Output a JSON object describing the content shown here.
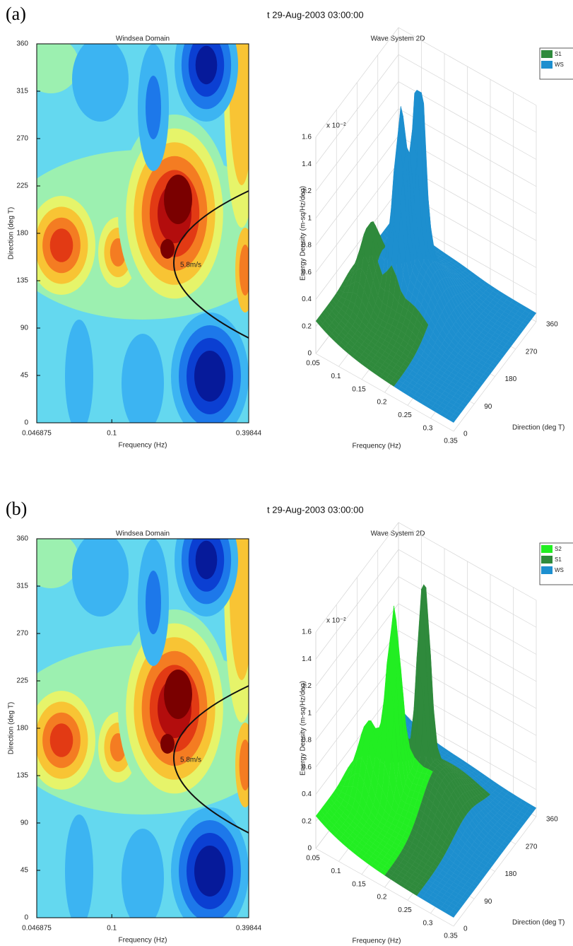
{
  "panels": [
    {
      "label": "(a)",
      "title": "t 29-Aug-2003 03:00:00",
      "charts": [
        {
          "type": "contour",
          "title": "Windsea Domain",
          "x_label": "Frequency (Hz)",
          "y_label": "Direction (deg T)",
          "xlim": [
            0.046875,
            0.39844
          ],
          "xticks": [
            0.046875,
            0.1,
            0.39844
          ],
          "xlog": true,
          "ylim": [
            0,
            360
          ],
          "yticks": [
            0,
            45,
            90,
            135,
            180,
            225,
            270,
            315,
            360
          ],
          "annotation": "5.8m/s"
        },
        {
          "type": "surface3d",
          "title": "Wave System 2D",
          "x_label": "Frequency (Hz)",
          "y_label": "Direction (deg T)",
          "z_label": "Energy Density (m-sq/Hz/deg)",
          "z_multiplier": "x 10⁻²",
          "xlim": [
            0.05,
            0.35
          ],
          "xticks": [
            0.05,
            0.1,
            0.15,
            0.2,
            0.25,
            0.3,
            0.35
          ],
          "ylim": [
            0,
            360
          ],
          "yticks": [
            0,
            90,
            180,
            270,
            360
          ],
          "zlim": [
            0,
            1.6
          ],
          "zticks": [
            0,
            0.2,
            0.4,
            0.6,
            0.8,
            1,
            1.2,
            1.4,
            1.6
          ],
          "series": [
            {
              "name": "S1",
              "color": "#2f8a3c"
            },
            {
              "name": "WS",
              "color": "#1d8fcf"
            }
          ]
        }
      ]
    },
    {
      "label": "(b)",
      "title": "t 29-Aug-2003 03:00:00",
      "charts": [
        {
          "type": "contour",
          "title": "Windsea Domain",
          "x_label": "Frequency (Hz)",
          "y_label": "Direction (deg T)",
          "xlim": [
            0.046875,
            0.39844
          ],
          "xticks": [
            0.046875,
            0.1,
            0.39844
          ],
          "xlog": true,
          "ylim": [
            0,
            360
          ],
          "yticks": [
            0,
            45,
            90,
            135,
            180,
            225,
            270,
            315,
            360
          ],
          "annotation": "5.8m/s"
        },
        {
          "type": "surface3d",
          "title": "Wave System 2D",
          "x_label": "Frequency (Hz)",
          "y_label": "Direction (deg T)",
          "z_label": "Energy Density (m-sq/Hz/deg)",
          "z_multiplier": "x 10⁻²",
          "xlim": [
            0.05,
            0.35
          ],
          "xticks": [
            0.05,
            0.1,
            0.15,
            0.2,
            0.25,
            0.3,
            0.35
          ],
          "ylim": [
            0,
            360
          ],
          "yticks": [
            0,
            90,
            180,
            270,
            360
          ],
          "zlim": [
            0,
            1.6
          ],
          "zticks": [
            0,
            0.2,
            0.4,
            0.6,
            0.8,
            1,
            1.2,
            1.4,
            1.6
          ],
          "series": [
            {
              "name": "S2",
              "color": "#22ee22"
            },
            {
              "name": "S1",
              "color": "#2f8a3c"
            },
            {
              "name": "WS",
              "color": "#1d8fcf"
            }
          ]
        }
      ]
    }
  ]
}
